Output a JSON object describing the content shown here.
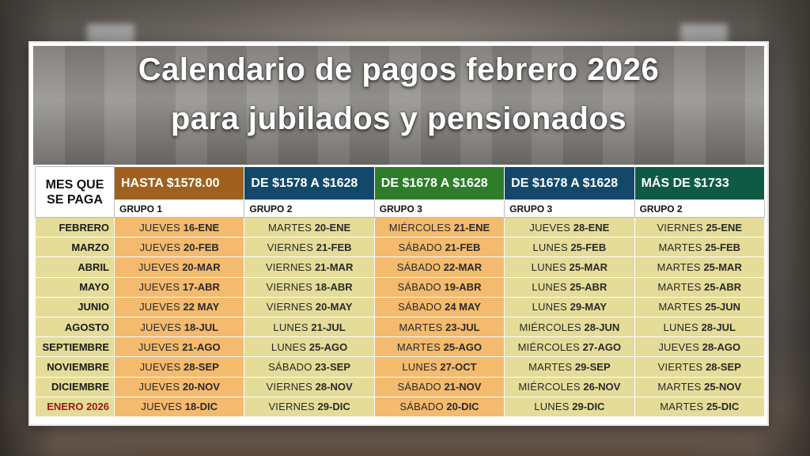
{
  "title": {
    "line1": "Calendario de pagos febrero 2026",
    "line2": "para jubilados y pensionados"
  },
  "table": {
    "first_header": "MES QUE SE PAGA",
    "columns": [
      {
        "range": "HASTA $1578.00",
        "group": "GRUPO 1",
        "color": "#a0601e"
      },
      {
        "range": "DE $1578 A $1628",
        "group": "GRUPO 2",
        "color": "#12486a"
      },
      {
        "range": "DE $1678 A $1628",
        "group": "GRUPO 3",
        "color": "#2d7d2b"
      },
      {
        "range": "DE $1678 A $1628",
        "group": "GRUPO 3",
        "color": "#13486a"
      },
      {
        "range": "MÁS DE $1733",
        "group": "GRUPO 2",
        "color": "#0f5a45"
      }
    ],
    "rows": [
      {
        "month": "FEBRERO",
        "cells": [
          [
            "JUEVES",
            "16-ENE"
          ],
          [
            "MARTES",
            "20-ENE"
          ],
          [
            "MIÉRCOLES",
            "21-ENE"
          ],
          [
            "JUEVES",
            "28-ENE"
          ],
          [
            "VIERNES",
            "25-ENE"
          ]
        ]
      },
      {
        "month": "MARZO",
        "cells": [
          [
            "JUEVES",
            "20-FEB"
          ],
          [
            "VIERNES",
            "21-FEB"
          ],
          [
            "SÁBADO",
            "21-FEB"
          ],
          [
            "LUNES",
            "25-FEB"
          ],
          [
            "MARTES",
            "25-FEB"
          ]
        ]
      },
      {
        "month": "ABRIL",
        "cells": [
          [
            "JUEVES",
            "20-MAR"
          ],
          [
            "VIERNES",
            "21-MAR"
          ],
          [
            "SÁBADO",
            "22-MAR"
          ],
          [
            "LUNES",
            "25-MAR"
          ],
          [
            "MARTES",
            "25-MAR"
          ]
        ]
      },
      {
        "month": "MAYO",
        "cells": [
          [
            "JUEVES",
            "17-ABR"
          ],
          [
            "VIERNES",
            "18-ABR"
          ],
          [
            "SÁBADO",
            "19-ABR"
          ],
          [
            "LUNES",
            "25-ABR"
          ],
          [
            "MARTES",
            "25-ABR"
          ]
        ]
      },
      {
        "month": "JUNIO",
        "cells": [
          [
            "JUEVES",
            "22 MAY"
          ],
          [
            "VIERNES",
            "20-MAY"
          ],
          [
            "SÁBADO",
            "24 MAY"
          ],
          [
            "LUNES",
            "29-MAY"
          ],
          [
            "MARTES",
            "25-JUN"
          ]
        ]
      },
      {
        "month": "AGOSTO",
        "cells": [
          [
            "JUEVES",
            "18-JUL"
          ],
          [
            "LUNES",
            "21-JUL"
          ],
          [
            "MARTES",
            "23-JUL"
          ],
          [
            "MIÉRCOLES",
            "28-JUN"
          ],
          [
            "LUNES",
            "28-JUL"
          ]
        ]
      },
      {
        "month": "SEPTIEMBRE",
        "cells": [
          [
            "JUEVES",
            "21-AGO"
          ],
          [
            "LUNES",
            "25-AGO"
          ],
          [
            "MARTES",
            "25-AGO"
          ],
          [
            "MIÉRCOLES",
            "27-AGO"
          ],
          [
            "JUEVES",
            "28-AGO"
          ]
        ]
      },
      {
        "month": "NOVIEMBRE",
        "cells": [
          [
            "JUEVES",
            "28-SEP"
          ],
          [
            "SÁBADO",
            "23-SEP"
          ],
          [
            "LUNES",
            "27-OCT"
          ],
          [
            "MARTES",
            "29-SEP"
          ],
          [
            "VIERTES",
            "28-SEP"
          ]
        ]
      },
      {
        "month": "DICIEMBRE",
        "cells": [
          [
            "JUEVES",
            "20-NOV"
          ],
          [
            "VIERNES",
            "28-NOV"
          ],
          [
            "SÁBADO",
            "21-NOV"
          ],
          [
            "MIÉRCOLES",
            "26-NOV"
          ],
          [
            "MARTES",
            "25-NOV"
          ]
        ]
      },
      {
        "month": "ENERO 2026",
        "highlight": true,
        "cells": [
          [
            "JUEVES",
            "18-DIC"
          ],
          [
            "VIERNES",
            "29-DIC"
          ],
          [
            "SÁBADO",
            "20-DIC"
          ],
          [
            "LUNES",
            "29-DIC"
          ],
          [
            "MARTES",
            "25-DIC"
          ]
        ]
      }
    ]
  }
}
